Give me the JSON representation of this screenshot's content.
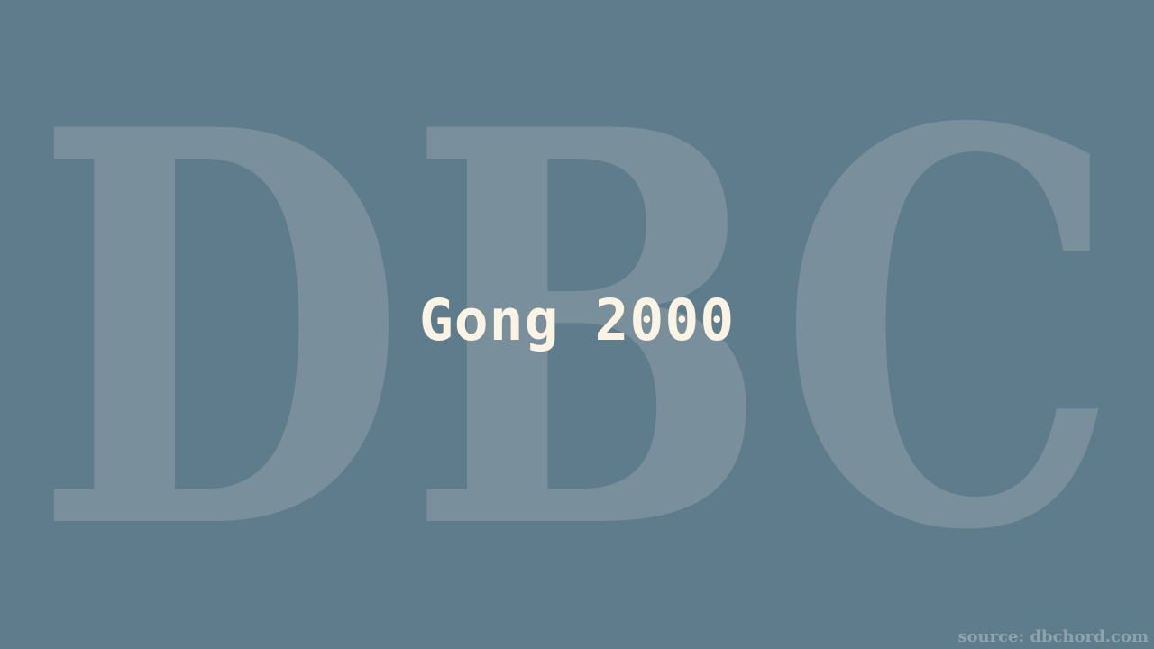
{
  "watermark": {
    "text": "DBC",
    "color": "#7a8f9c"
  },
  "title": "Gong 2000",
  "source": "source: dbchord.com",
  "colors": {
    "background": "#5f7c8c",
    "title": "#fbf3e3",
    "source": "#8ea3b0"
  }
}
